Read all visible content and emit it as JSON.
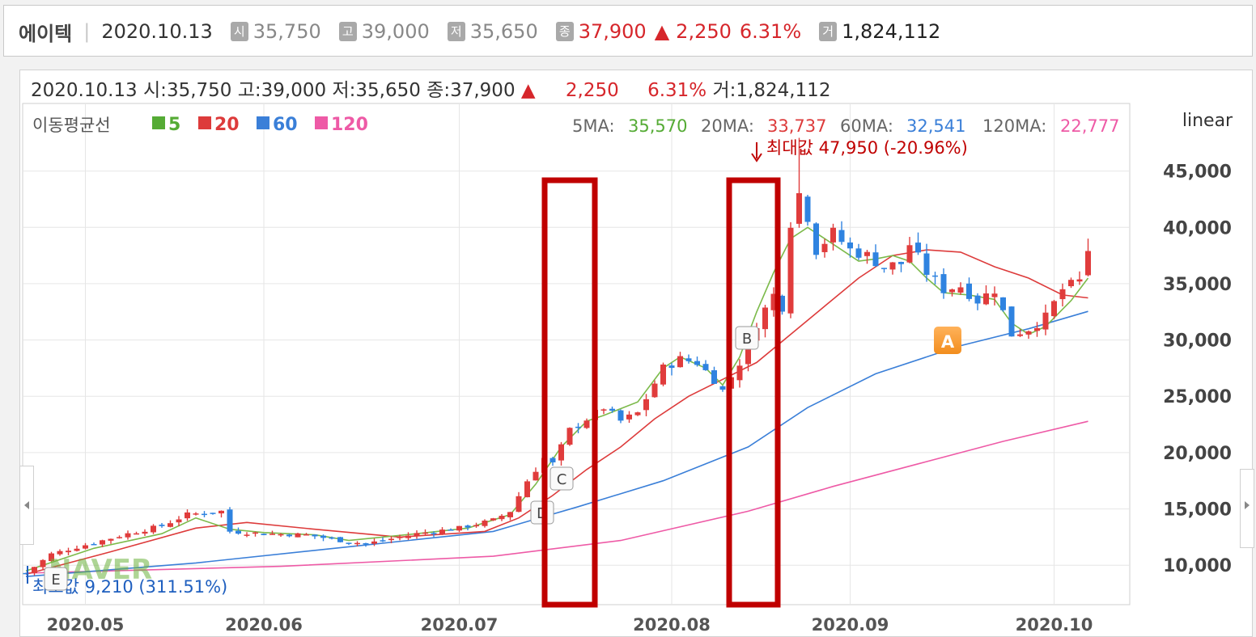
{
  "header": {
    "name": "에이텍",
    "date": "2020.10.13",
    "open_badge": "시",
    "open_value": "35,750",
    "high_badge": "고",
    "high_value": "39,000",
    "low_badge": "저",
    "low_value": "35,650",
    "close_badge": "종",
    "close_value": "37,900",
    "change_arrow": "▲",
    "change_value": "2,250",
    "change_pct": "6.31%",
    "volume_badge": "거",
    "volume_value": "1,824,112"
  },
  "infoline": {
    "date": "2020.10.13",
    "open_label": "시:",
    "open": "35,750",
    "high_label": "고:",
    "high": "39,000",
    "low_label": "저:",
    "low": "35,650",
    "close_label": "종:",
    "close": "37,900",
    "arrow": "▲",
    "change": "2,250",
    "pct": "6.31%",
    "volume_label": "거:",
    "volume": "1,824,112"
  },
  "colors": {
    "ma5": "#7cba4a",
    "ma20": "#dd3b3b",
    "ma60": "#3a7fd8",
    "ma120": "#ee5aa6",
    "up": "#e03c3c",
    "down": "#2f83e0",
    "highlight": "#c00000"
  },
  "chart_data": {
    "type": "candlestick",
    "scale_label": "linear",
    "legend_title": "이동평균선",
    "legend": [
      {
        "label": "5",
        "color": "#55ab35"
      },
      {
        "label": "20",
        "color": "#dd3b3b"
      },
      {
        "label": "60",
        "color": "#3a7fd8"
      },
      {
        "label": "120",
        "color": "#ee5aa6"
      }
    ],
    "ma_values": [
      {
        "label": "5MA:",
        "value": "35,570",
        "color": "#55ab35"
      },
      {
        "label": "20MA:",
        "value": "33,737",
        "color": "#dd3b3b"
      },
      {
        "label": "60MA:",
        "value": "32,541",
        "color": "#3a7fd8"
      },
      {
        "label": "120MA:",
        "value": "22,777",
        "color": "#ee5aa6"
      }
    ],
    "max_annotation": "최대값 47,950 (-20.96%)",
    "min_annotation": "최소값 9,210 (311.51%)",
    "y_ticks": [
      45000,
      40000,
      35000,
      30000,
      25000,
      20000,
      15000,
      10000
    ],
    "y_tick_labels": [
      "45,000",
      "40,000",
      "35,000",
      "30,000",
      "25,000",
      "20,000",
      "15,000",
      "10,000"
    ],
    "ylim": [
      6500,
      51000
    ],
    "x_labels": [
      "2020.05",
      "2020.06",
      "2020.07",
      "2020.08",
      "2020.09",
      "2020.10"
    ],
    "markers": [
      "A",
      "B",
      "C",
      "D",
      "E"
    ],
    "watermark": "NAVER",
    "ma5_points": [
      [
        0,
        9500
      ],
      [
        8,
        11500
      ],
      [
        16,
        12800
      ],
      [
        20,
        14200
      ],
      [
        24,
        13200
      ],
      [
        28,
        12900
      ],
      [
        34,
        12700
      ],
      [
        38,
        12200
      ],
      [
        46,
        12800
      ],
      [
        52,
        13300
      ],
      [
        57,
        14500
      ],
      [
        60,
        17200
      ],
      [
        63,
        20500
      ],
      [
        66,
        22800
      ],
      [
        68,
        23300
      ],
      [
        72,
        24500
      ],
      [
        75,
        27500
      ],
      [
        77,
        28500
      ],
      [
        80,
        27500
      ],
      [
        82,
        26000
      ],
      [
        84,
        28500
      ],
      [
        86,
        32500
      ],
      [
        88,
        36000
      ],
      [
        90,
        39000
      ],
      [
        92,
        40000
      ],
      [
        94,
        39000
      ],
      [
        96,
        38000
      ],
      [
        98,
        37000
      ],
      [
        100,
        37200
      ],
      [
        102,
        37500
      ],
      [
        104,
        37000
      ],
      [
        106,
        35500
      ],
      [
        108,
        34200
      ],
      [
        111,
        34000
      ],
      [
        114,
        33600
      ],
      [
        116,
        31500
      ],
      [
        118,
        30500
      ],
      [
        120,
        31200
      ],
      [
        123,
        33500
      ],
      [
        125,
        35500
      ]
    ],
    "ma20_points": [
      [
        0,
        9200
      ],
      [
        10,
        11200
      ],
      [
        20,
        13300
      ],
      [
        26,
        13800
      ],
      [
        34,
        13200
      ],
      [
        44,
        12500
      ],
      [
        54,
        13000
      ],
      [
        58,
        14200
      ],
      [
        62,
        16200
      ],
      [
        66,
        18500
      ],
      [
        70,
        20500
      ],
      [
        74,
        23000
      ],
      [
        78,
        25000
      ],
      [
        82,
        26500
      ],
      [
        86,
        28000
      ],
      [
        90,
        30500
      ],
      [
        94,
        33000
      ],
      [
        98,
        35500
      ],
      [
        102,
        37500
      ],
      [
        106,
        38000
      ],
      [
        110,
        37800
      ],
      [
        114,
        36500
      ],
      [
        118,
        35500
      ],
      [
        122,
        34000
      ],
      [
        125,
        33737
      ]
    ],
    "ma60_points": [
      [
        0,
        9000
      ],
      [
        20,
        10200
      ],
      [
        40,
        11800
      ],
      [
        55,
        13000
      ],
      [
        65,
        15200
      ],
      [
        75,
        17500
      ],
      [
        85,
        20500
      ],
      [
        92,
        24000
      ],
      [
        100,
        27000
      ],
      [
        110,
        29500
      ],
      [
        118,
        31000
      ],
      [
        125,
        32541
      ]
    ],
    "ma120_points": [
      [
        0,
        9300
      ],
      [
        30,
        9900
      ],
      [
        55,
        10800
      ],
      [
        70,
        12200
      ],
      [
        85,
        14800
      ],
      [
        95,
        17000
      ],
      [
        105,
        19000
      ],
      [
        115,
        21000
      ],
      [
        125,
        22777
      ]
    ]
  }
}
